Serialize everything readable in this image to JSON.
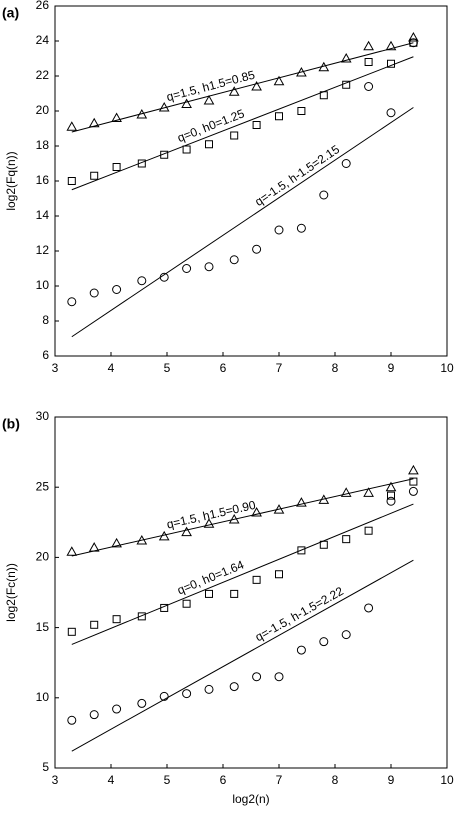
{
  "chart_data": [
    {
      "type": "scatter",
      "label": "(a)",
      "ylabel": "log2(Fq(n))",
      "x": [
        3.3,
        3.7,
        4.1,
        4.55,
        4.95,
        5.35,
        5.75,
        6.2,
        6.6,
        7.0,
        7.4,
        7.8,
        8.2,
        8.6,
        9.0,
        9.4
      ],
      "xlim": [
        3,
        10
      ],
      "xticks": [
        3,
        4,
        5,
        6,
        7,
        8,
        9,
        10
      ],
      "ylim": [
        6,
        26
      ],
      "yticks": [
        6,
        8,
        10,
        12,
        14,
        16,
        18,
        20,
        22,
        24,
        26
      ],
      "series": [
        {
          "name": "q=1.5, h1.5=0.85",
          "marker": "triangle",
          "color": "#000000",
          "values": [
            19.1,
            19.3,
            19.6,
            19.8,
            20.2,
            20.4,
            20.6,
            21.1,
            21.4,
            21.7,
            22.2,
            22.5,
            23.0,
            23.7,
            23.7,
            24.2
          ],
          "fit": {
            "x": [
              3.3,
              9.4
            ],
            "values": [
              18.8,
              23.9
            ]
          }
        },
        {
          "name": "q=0, h0=1.25",
          "marker": "square",
          "color": "#000000",
          "values": [
            16.0,
            16.3,
            16.8,
            17.0,
            17.5,
            17.8,
            18.1,
            18.6,
            19.2,
            19.7,
            20.0,
            20.9,
            21.5,
            22.8,
            22.7,
            23.9
          ],
          "fit": {
            "x": [
              3.3,
              9.4
            ],
            "values": [
              15.5,
              23.1
            ]
          }
        },
        {
          "name": "q=-1.5, h-1.5=2.15",
          "marker": "circle",
          "color": "#000000",
          "values": [
            9.1,
            9.6,
            9.8,
            10.3,
            10.5,
            11.0,
            11.1,
            11.5,
            12.1,
            13.2,
            13.3,
            15.2,
            17.0,
            21.4,
            19.9,
            23.9
          ],
          "fit": {
            "x": [
              3.3,
              9.4
            ],
            "values": [
              7.1,
              20.2
            ]
          }
        }
      ]
    },
    {
      "type": "scatter",
      "label": "(b)",
      "ylabel": "log2(Fc(n))",
      "xlabel": "log2(n)",
      "x": [
        3.3,
        3.7,
        4.1,
        4.55,
        4.95,
        5.35,
        5.75,
        6.2,
        6.6,
        7.0,
        7.4,
        7.8,
        8.2,
        8.6,
        9.0,
        9.4
      ],
      "xlim": [
        3,
        10
      ],
      "xticks": [
        3,
        4,
        5,
        6,
        7,
        8,
        9,
        10
      ],
      "ylim": [
        5,
        30
      ],
      "yticks": [
        5,
        10,
        15,
        20,
        25,
        30
      ],
      "series": [
        {
          "name": "q=1.5, h1.5=0.90",
          "marker": "triangle",
          "color": "#000000",
          "values": [
            20.4,
            20.7,
            21.0,
            21.2,
            21.5,
            21.8,
            22.4,
            22.7,
            23.2,
            23.4,
            23.9,
            24.1,
            24.6,
            24.6,
            25.0,
            26.2
          ],
          "fit": {
            "x": [
              3.3,
              9.4
            ],
            "values": [
              20.1,
              25.6
            ]
          }
        },
        {
          "name": "q=0, h0=1.64",
          "marker": "square",
          "color": "#000000",
          "values": [
            14.7,
            15.2,
            15.6,
            15.8,
            16.4,
            16.7,
            17.4,
            17.4,
            18.4,
            18.8,
            20.5,
            20.9,
            21.3,
            21.9,
            24.4,
            25.4
          ],
          "fit": {
            "x": [
              3.3,
              9.4
            ],
            "values": [
              13.8,
              23.8
            ]
          }
        },
        {
          "name": "q=-1.5, h-1.5=2.22",
          "marker": "circle",
          "color": "#000000",
          "values": [
            8.4,
            8.8,
            9.2,
            9.6,
            10.1,
            10.3,
            10.6,
            10.8,
            11.5,
            11.5,
            13.4,
            14.0,
            14.5,
            16.4,
            24.0,
            24.7
          ],
          "fit": {
            "x": [
              3.3,
              9.4
            ],
            "values": [
              6.2,
              19.8
            ]
          }
        }
      ]
    }
  ]
}
